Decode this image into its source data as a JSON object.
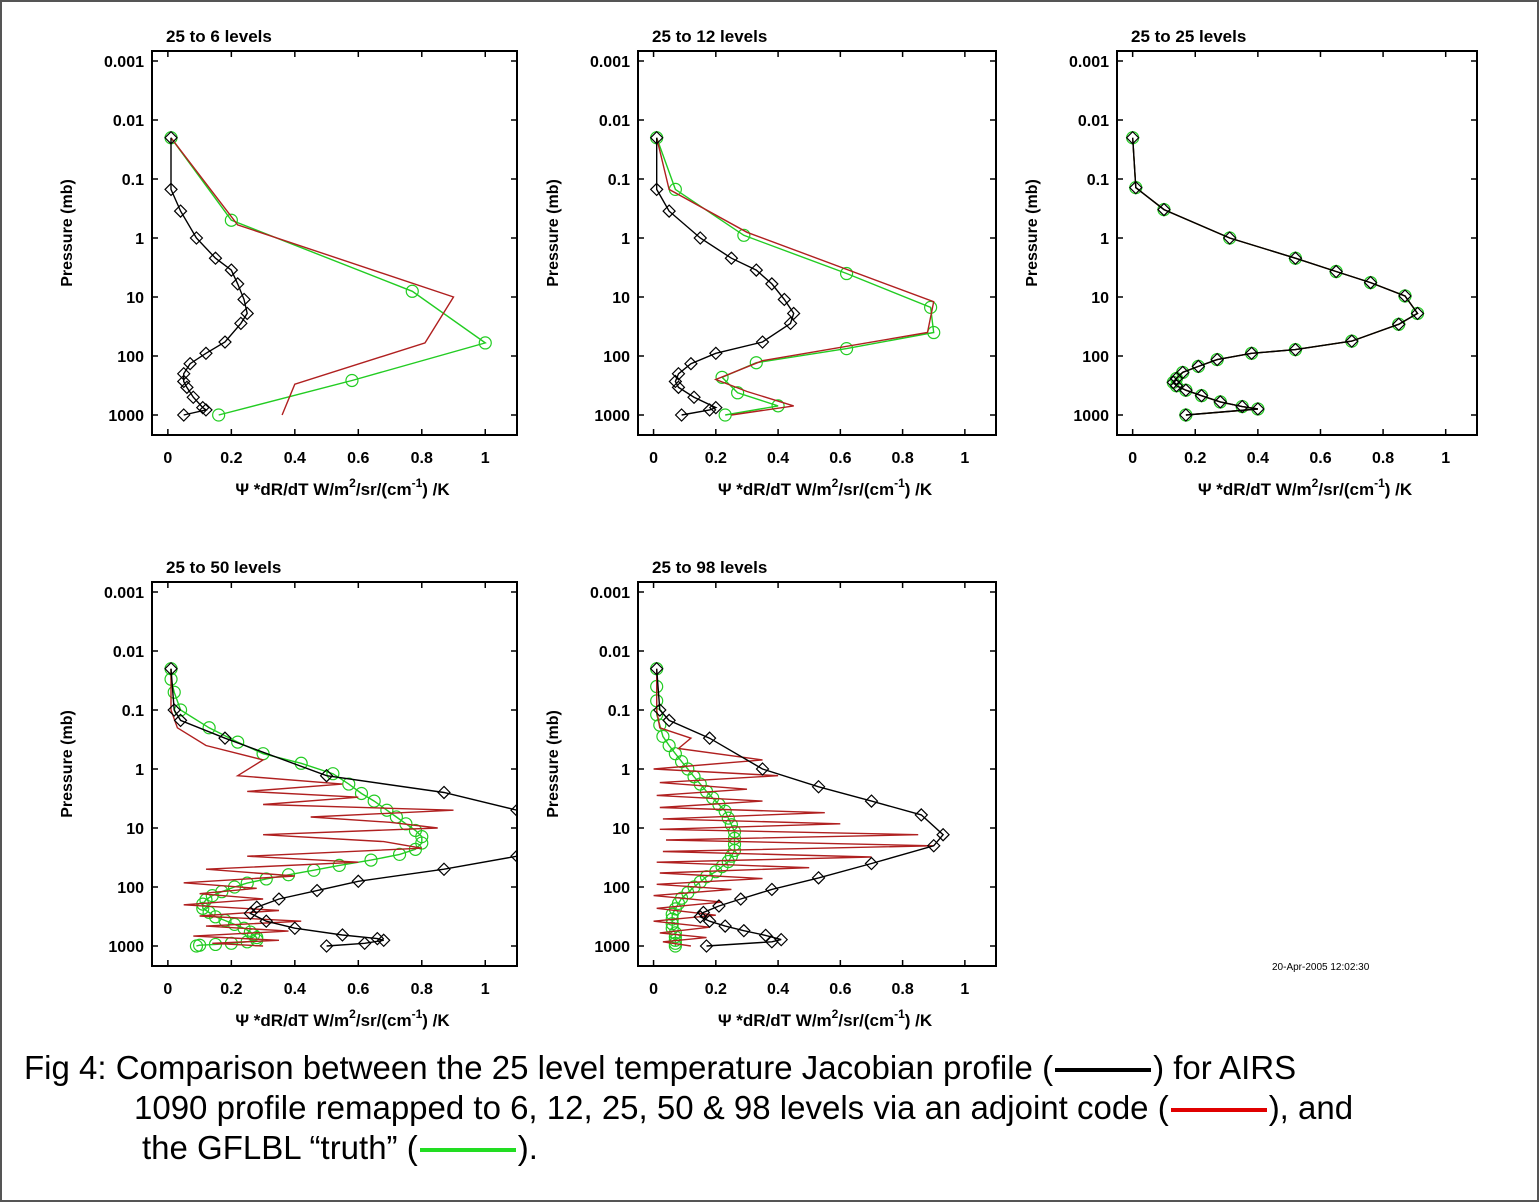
{
  "colors": {
    "jacobian": "#000000",
    "adjoint": "#b02020",
    "truth": "#22cc22",
    "accent_red": "#e00000",
    "accent_green": "#22dd22"
  },
  "timestamp": "20-Apr-2005 12:02:30",
  "caption": {
    "line1a": "Fig 4: Comparison between the 25 level temperature Jacobian profile (",
    "line1b": ") for AIRS",
    "line2a": "1090 profile remapped to 6, 12, 25, 50 & 98 levels via an adjoint code (",
    "line2b": "), and",
    "line3a": "the GFLBL “truth” (",
    "line3b": ")."
  },
  "chart_data": [
    {
      "type": "line",
      "title": "25 to 6 levels",
      "ylabel": "Pressure (mb)",
      "xlabel": "Ψ *dR/dT  W/m²/sr/(cm⁻¹) /K",
      "xlim": [
        -0.05,
        1.1
      ],
      "ylim": [
        0.001,
        1000
      ],
      "yscale": "log",
      "yreversed": true,
      "xticks": [
        "0",
        "0.2",
        "0.4",
        "0.6",
        "0.8",
        "1"
      ],
      "yticks": [
        "0.001",
        "0.01",
        "0.1",
        "1",
        "10",
        "100",
        "1000"
      ],
      "series": [
        {
          "key": "jacobian",
          "marker": "diamond",
          "x": [
            0.01,
            0.01,
            0.04,
            0.09,
            0.15,
            0.2,
            0.22,
            0.24,
            0.25,
            0.23,
            0.18,
            0.12,
            0.07,
            0.05,
            0.05,
            0.06,
            0.08,
            0.11,
            0.12,
            0.05
          ],
          "y": [
            0.02,
            0.15,
            0.35,
            1,
            2.2,
            3.5,
            6,
            11,
            19,
            28,
            58,
            90,
            135,
            200,
            270,
            340,
            500,
            750,
            820,
            1000
          ]
        },
        {
          "key": "adjoint",
          "marker": "none",
          "x": [
            0.01,
            0.22,
            0.9,
            0.81,
            0.4,
            0.36
          ],
          "y": [
            0.02,
            0.6,
            10,
            60,
            300,
            1000
          ]
        },
        {
          "key": "truth",
          "marker": "circle",
          "x": [
            0.01,
            0.2,
            0.77,
            1.0,
            0.58,
            0.16
          ],
          "y": [
            0.02,
            0.5,
            8,
            60,
            260,
            1000
          ]
        }
      ]
    },
    {
      "type": "line",
      "title": "25 to 12 levels",
      "ylabel": "Pressure (mb)",
      "xlabel": "Ψ *dR/dT  W/m²/sr/(cm⁻¹) /K",
      "xlim": [
        -0.05,
        1.1
      ],
      "ylim": [
        0.001,
        1000
      ],
      "yscale": "log",
      "yreversed": true,
      "xticks": [
        "0",
        "0.2",
        "0.4",
        "0.6",
        "0.8",
        "1"
      ],
      "yticks": [
        "0.001",
        "0.01",
        "0.1",
        "1",
        "10",
        "100",
        "1000"
      ],
      "series": [
        {
          "key": "jacobian",
          "marker": "diamond",
          "x": [
            0.01,
            0.01,
            0.05,
            0.15,
            0.25,
            0.33,
            0.38,
            0.42,
            0.45,
            0.44,
            0.35,
            0.2,
            0.12,
            0.08,
            0.07,
            0.08,
            0.13,
            0.2,
            0.18,
            0.09
          ],
          "y": [
            0.02,
            0.15,
            0.35,
            1,
            2.2,
            3.5,
            6,
            11,
            19,
            28,
            58,
            90,
            135,
            200,
            270,
            340,
            500,
            750,
            820,
            1000
          ]
        },
        {
          "key": "adjoint",
          "marker": "none",
          "x": [
            0.01,
            0.05,
            0.3,
            0.9,
            0.88,
            0.35,
            0.2,
            0.3,
            0.45,
            0.25
          ],
          "y": [
            0.02,
            0.15,
            0.8,
            12,
            40,
            120,
            250,
            400,
            700,
            1000
          ]
        },
        {
          "key": "truth",
          "marker": "circle",
          "x": [
            0.01,
            0.07,
            0.29,
            0.62,
            0.89,
            0.9,
            0.62,
            0.33,
            0.22,
            0.27,
            0.4,
            0.23
          ],
          "y": [
            0.02,
            0.15,
            0.9,
            4,
            15,
            40,
            75,
            130,
            230,
            420,
            700,
            1000
          ]
        }
      ]
    },
    {
      "type": "line",
      "title": "25 to 25 levels",
      "ylabel": "Pressure (mb)",
      "xlabel": "Ψ *dR/dT  W/m²/sr/(cm⁻¹) /K",
      "xlim": [
        -0.05,
        1.1
      ],
      "ylim": [
        0.001,
        1000
      ],
      "yscale": "log",
      "yreversed": true,
      "xticks": [
        "0",
        "0.2",
        "0.4",
        "0.6",
        "0.8",
        "1"
      ],
      "yticks": [
        "0.001",
        "0.01",
        "0.1",
        "1",
        "10",
        "100",
        "1000"
      ],
      "series": [
        {
          "key": "jacobian",
          "marker": "diamond",
          "x": [
            0.0,
            0.01,
            0.1,
            0.31,
            0.52,
            0.65,
            0.76,
            0.87,
            0.91,
            0.85,
            0.7,
            0.52,
            0.38,
            0.27,
            0.21,
            0.16,
            0.14,
            0.13,
            0.14,
            0.17,
            0.22,
            0.28,
            0.35,
            0.4,
            0.17
          ],
          "y": [
            0.02,
            0.14,
            0.33,
            1,
            2.2,
            3.7,
            5.7,
            9.6,
            19,
            29,
            56,
            78,
            90,
            115,
            150,
            190,
            240,
            280,
            320,
            380,
            470,
            600,
            720,
            790,
            1000
          ]
        },
        {
          "key": "adjoint",
          "marker": "none",
          "x": [
            0.0,
            0.01,
            0.1,
            0.31,
            0.52,
            0.65,
            0.76,
            0.87,
            0.91,
            0.85,
            0.7,
            0.52,
            0.38,
            0.27,
            0.21,
            0.16,
            0.14,
            0.13,
            0.14,
            0.17,
            0.22,
            0.28,
            0.35,
            0.4,
            0.17
          ],
          "y": [
            0.02,
            0.14,
            0.33,
            1,
            2.2,
            3.7,
            5.7,
            9.6,
            19,
            29,
            56,
            78,
            90,
            115,
            150,
            190,
            240,
            280,
            320,
            380,
            470,
            600,
            720,
            790,
            1000
          ]
        },
        {
          "key": "truth",
          "marker": "circle",
          "x": [
            0.0,
            0.01,
            0.1,
            0.31,
            0.52,
            0.65,
            0.76,
            0.87,
            0.91,
            0.85,
            0.7,
            0.52,
            0.38,
            0.27,
            0.21,
            0.16,
            0.14,
            0.13,
            0.14,
            0.17,
            0.22,
            0.28,
            0.35,
            0.4,
            0.17
          ],
          "y": [
            0.02,
            0.14,
            0.33,
            1,
            2.2,
            3.7,
            5.7,
            9.6,
            19,
            29,
            56,
            78,
            90,
            115,
            150,
            190,
            240,
            280,
            320,
            380,
            470,
            600,
            720,
            790,
            1000
          ]
        }
      ]
    },
    {
      "type": "line",
      "title": "25 to 50 levels",
      "ylabel": "Pressure (mb)",
      "xlabel": "Ψ *dR/dT  W/m²/sr/(cm⁻¹) /K",
      "xlim": [
        -0.05,
        1.1
      ],
      "ylim": [
        0.001,
        1000
      ],
      "yscale": "log",
      "yreversed": true,
      "xticks": [
        "0",
        "0.2",
        "0.4",
        "0.6",
        "0.8",
        "1"
      ],
      "yticks": [
        "0.001",
        "0.01",
        "0.1",
        "1",
        "10",
        "100",
        "1000"
      ],
      "series": [
        {
          "key": "jacobian",
          "marker": "diamond",
          "x": [
            0.01,
            0.02,
            0.04,
            0.18,
            0.5,
            0.87,
            1.1,
            1.2,
            1.1,
            0.87,
            0.6,
            0.47,
            0.35,
            0.28,
            0.26,
            0.31,
            0.4,
            0.55,
            0.66,
            0.68,
            0.62,
            0.5
          ],
          "y": [
            0.02,
            0.1,
            0.15,
            0.3,
            1.3,
            2.5,
            5,
            12,
            30,
            50,
            80,
            115,
            160,
            220,
            280,
            380,
            500,
            650,
            750,
            800,
            900,
            1000
          ]
        },
        {
          "key": "adjoint",
          "marker": "none",
          "x": [
            0.01,
            0.01,
            0.03,
            0.12,
            0.3,
            0.22,
            0.55,
            0.25,
            0.6,
            0.3,
            0.9,
            0.45,
            0.7,
            0.85,
            0.3,
            0.68,
            0.8,
            0.25,
            0.6,
            0.12,
            0.4,
            0.05,
            0.28,
            0.1,
            0.3,
            0.05,
            0.35,
            0.1,
            0.42,
            0.12,
            0.38,
            0.08,
            0.35,
            0.14,
            0.3
          ],
          "y": [
            0.02,
            0.1,
            0.2,
            0.4,
            0.7,
            1.3,
            1.8,
            2.4,
            3,
            4,
            5,
            6.5,
            8,
            10,
            13,
            17,
            22,
            30,
            38,
            50,
            65,
            85,
            105,
            130,
            160,
            200,
            250,
            310,
            380,
            460,
            560,
            680,
            800,
            900,
            1000
          ]
        },
        {
          "key": "truth",
          "marker": "circle",
          "x": [
            0.01,
            0.01,
            0.02,
            0.04,
            0.13,
            0.22,
            0.3,
            0.42,
            0.52,
            0.57,
            0.61,
            0.65,
            0.69,
            0.72,
            0.75,
            0.78,
            0.8,
            0.8,
            0.78,
            0.73,
            0.64,
            0.54,
            0.46,
            0.38,
            0.31,
            0.25,
            0.21,
            0.17,
            0.14,
            0.12,
            0.11,
            0.11,
            0.13,
            0.15,
            0.18,
            0.21,
            0.24,
            0.26,
            0.27,
            0.28,
            0.28,
            0.25,
            0.2,
            0.15,
            0.1,
            0.09
          ],
          "y": [
            0.02,
            0.03,
            0.05,
            0.1,
            0.2,
            0.35,
            0.55,
            0.8,
            1.2,
            1.8,
            2.6,
            3.5,
            5,
            6.5,
            8.5,
            11,
            14,
            18,
            23,
            28,
            35,
            43,
            52,
            62,
            73,
            86,
            100,
            120,
            140,
            165,
            195,
            230,
            270,
            320,
            370,
            430,
            500,
            580,
            650,
            720,
            790,
            850,
            900,
            940,
            970,
            1000
          ]
        }
      ]
    },
    {
      "type": "line",
      "title": "25 to 98 levels",
      "ylabel": "Pressure (mb)",
      "xlabel": "Ψ *dR/dT  W/m²/sr/(cm⁻¹) /K",
      "xlim": [
        -0.05,
        1.1
      ],
      "ylim": [
        0.001,
        1000
      ],
      "yscale": "log",
      "yreversed": true,
      "xticks": [
        "0",
        "0.2",
        "0.4",
        "0.6",
        "0.8",
        "1"
      ],
      "yticks": [
        "0.001",
        "0.01",
        "0.1",
        "1",
        "10",
        "100",
        "1000"
      ],
      "series": [
        {
          "key": "jacobian",
          "marker": "diamond",
          "x": [
            0.01,
            0.02,
            0.05,
            0.18,
            0.35,
            0.53,
            0.7,
            0.86,
            0.93,
            0.9,
            0.7,
            0.53,
            0.38,
            0.28,
            0.21,
            0.16,
            0.15,
            0.18,
            0.23,
            0.29,
            0.36,
            0.41,
            0.38,
            0.17
          ],
          "y": [
            0.02,
            0.1,
            0.15,
            0.3,
            1,
            2,
            3.5,
            6,
            13,
            20,
            40,
            70,
            110,
            160,
            210,
            270,
            320,
            380,
            460,
            550,
            660,
            780,
            850,
            1000
          ]
        },
        {
          "key": "adjoint",
          "marker": "none",
          "x": [
            0.01,
            0.01,
            0.02,
            0.12,
            0.08,
            0.35,
            0.0,
            0.4,
            0.02,
            0.3,
            0.01,
            0.35,
            0.02,
            0.55,
            0.03,
            0.6,
            0.02,
            0.85,
            0.04,
            0.9,
            0.03,
            0.7,
            0.01,
            0.5,
            0.02,
            0.35,
            0.01,
            0.25,
            0.0,
            0.22,
            0.01,
            0.2,
            0.0,
            0.18,
            0.02,
            0.17,
            0.03,
            0.12
          ],
          "y": [
            0.02,
            0.1,
            0.2,
            0.3,
            0.45,
            0.7,
            1,
            1.3,
            1.7,
            2.2,
            2.8,
            3.5,
            4.5,
            5.5,
            7,
            8.5,
            10.5,
            13,
            16,
            20,
            25,
            31,
            38,
            47,
            58,
            72,
            90,
            110,
            140,
            180,
            230,
            300,
            380,
            480,
            600,
            720,
            850,
            1000
          ]
        },
        {
          "key": "truth",
          "marker": "circle",
          "x": [
            0.01,
            0.01,
            0.01,
            0.01,
            0.02,
            0.03,
            0.05,
            0.07,
            0.09,
            0.11,
            0.13,
            0.15,
            0.17,
            0.19,
            0.21,
            0.23,
            0.24,
            0.25,
            0.26,
            0.26,
            0.26,
            0.26,
            0.25,
            0.24,
            0.22,
            0.2,
            0.17,
            0.15,
            0.13,
            0.11,
            0.09,
            0.08,
            0.07,
            0.06,
            0.06,
            0.06,
            0.06,
            0.07,
            0.07,
            0.07,
            0.07,
            0.07
          ],
          "y": [
            0.02,
            0.04,
            0.07,
            0.12,
            0.18,
            0.28,
            0.4,
            0.55,
            0.75,
            1,
            1.35,
            1.8,
            2.4,
            3.1,
            4,
            5.2,
            6.8,
            8.8,
            11.5,
            15,
            19,
            24,
            30,
            37,
            45,
            55,
            67,
            82,
            100,
            125,
            155,
            190,
            235,
            290,
            350,
            420,
            500,
            600,
            700,
            800,
            900,
            1000
          ]
        }
      ]
    }
  ]
}
